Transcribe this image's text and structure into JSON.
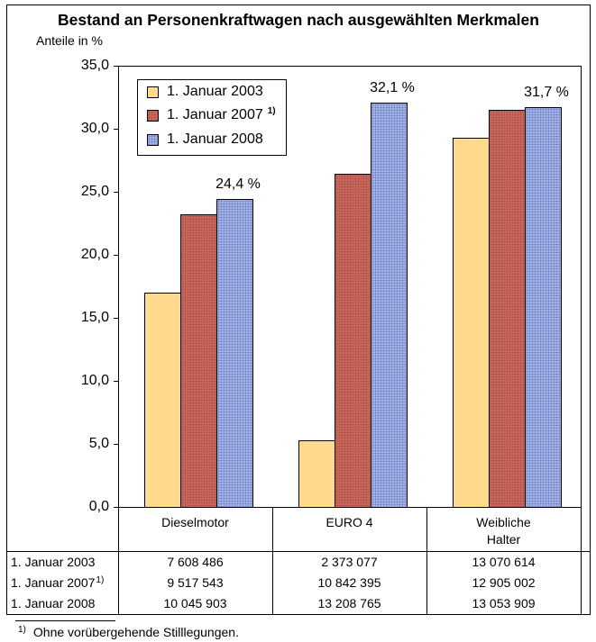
{
  "chart_data": {
    "type": "bar",
    "title": "Bestand an Personenkraftwagen nach ausgewählten Merkmalen",
    "ylabel": "Anteile in %",
    "categories": [
      "Dieselmotor",
      "EURO 4",
      "Weibliche Halter"
    ],
    "series": [
      {
        "name": "1. Januar 2003",
        "color": "#ffd98d",
        "values": [
          17.0,
          5.3,
          29.3
        ]
      },
      {
        "name": "1. Januar 2007",
        "footnote_marker": "1)",
        "color": "#c9695f",
        "values": [
          23.2,
          26.4,
          31.5
        ]
      },
      {
        "name": "1. Januar 2008",
        "color": "#a9b8e8",
        "values": [
          24.4,
          32.1,
          31.7
        ],
        "data_labels": [
          "24,4 %",
          "32,1 %",
          "31,7 %"
        ]
      }
    ],
    "ylim": [
      0,
      35
    ],
    "yticks": [
      0,
      5,
      10,
      15,
      20,
      25,
      30,
      35
    ],
    "ytick_labels": [
      "0,0",
      "5,0",
      "10,0",
      "15,0",
      "20,0",
      "25,0",
      "30,0",
      "35,0"
    ],
    "grid": false,
    "legend_position": "top-left"
  },
  "table": {
    "rows": [
      {
        "label": "1. Januar 2003",
        "values": [
          "7 608 486",
          "2 373 077",
          "13 070 614"
        ]
      },
      {
        "label": "1. Januar 2007",
        "marker": "1)",
        "values": [
          "9 517 543",
          "10 842 395",
          "12 905 002"
        ]
      },
      {
        "label": "1. Januar 2008",
        "values": [
          "10 045 903",
          "13 208 765",
          "13 053 909"
        ]
      }
    ]
  },
  "footnote": {
    "marker": "1)",
    "text": "Ohne vorübergehende Stilllegungen."
  }
}
